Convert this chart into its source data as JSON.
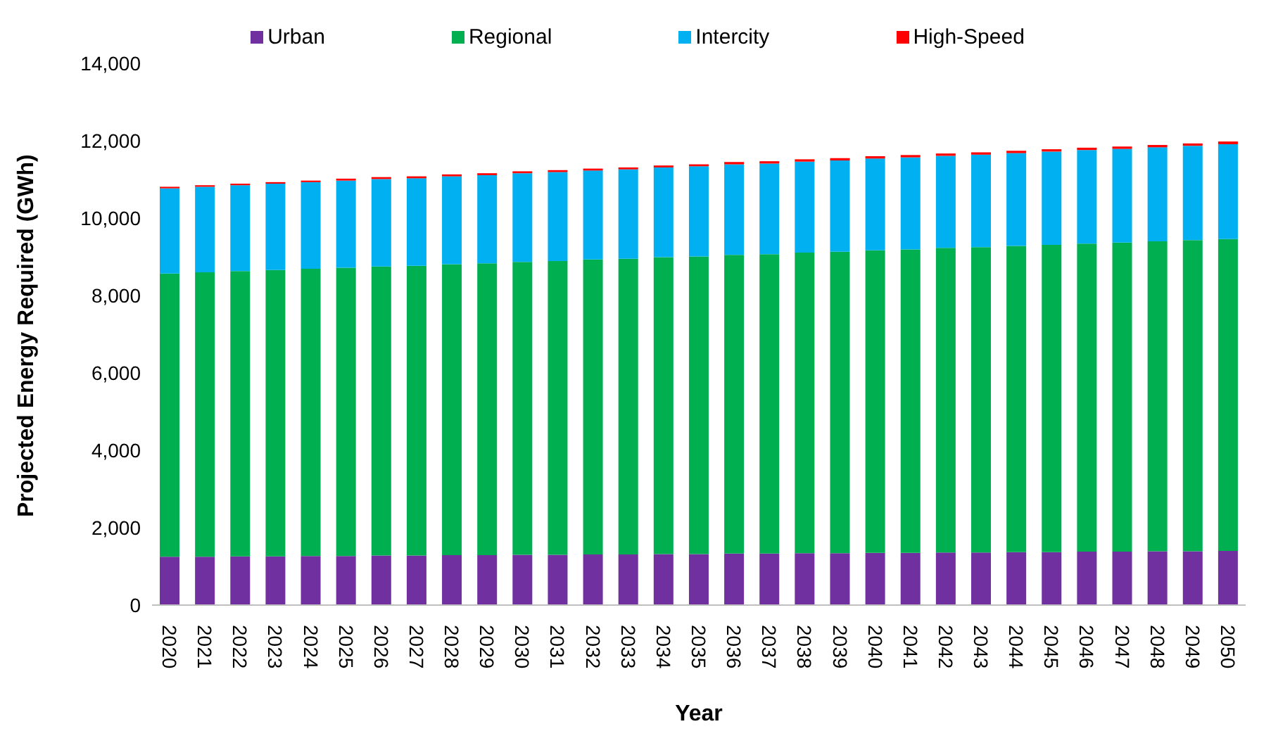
{
  "chart_data": {
    "type": "bar",
    "stacked": true,
    "xlabel": "Year",
    "ylabel": "Projected Energy Required (GWh)",
    "categories": [
      "2020",
      "2021",
      "2022",
      "2023",
      "2024",
      "2025",
      "2026",
      "2027",
      "2028",
      "2029",
      "2030",
      "2031",
      "2032",
      "2033",
      "2034",
      "2035",
      "2036",
      "2037",
      "2038",
      "2039",
      "2040",
      "2041",
      "2042",
      "2043",
      "2044",
      "2045",
      "2046",
      "2047",
      "2048",
      "2049",
      "2050"
    ],
    "series": [
      {
        "name": "Urban",
        "color": "#7030a0",
        "values": [
          1250,
          1250,
          1260,
          1260,
          1270,
          1270,
          1280,
          1280,
          1290,
          1290,
          1300,
          1300,
          1310,
          1310,
          1320,
          1320,
          1330,
          1330,
          1340,
          1340,
          1350,
          1350,
          1360,
          1360,
          1370,
          1370,
          1380,
          1380,
          1390,
          1390,
          1400
        ]
      },
      {
        "name": "Regional",
        "color": "#00b050",
        "values": [
          7320,
          7350,
          7370,
          7400,
          7420,
          7450,
          7470,
          7490,
          7520,
          7540,
          7570,
          7590,
          7620,
          7640,
          7670,
          7690,
          7720,
          7740,
          7770,
          7790,
          7820,
          7840,
          7870,
          7890,
          7910,
          7940,
          7960,
          7990,
          8010,
          8040,
          8060
        ]
      },
      {
        "name": "Intercity",
        "color": "#00b0f0",
        "values": [
          2200,
          2210,
          2220,
          2230,
          2240,
          2250,
          2260,
          2260,
          2270,
          2280,
          2290,
          2300,
          2300,
          2310,
          2320,
          2330,
          2340,
          2340,
          2350,
          2360,
          2370,
          2380,
          2380,
          2390,
          2400,
          2410,
          2420,
          2420,
          2430,
          2440,
          2450
        ]
      },
      {
        "name": "High-Speed",
        "color": "#ff0000",
        "values": [
          40,
          40,
          40,
          40,
          40,
          50,
          50,
          50,
          50,
          50,
          50,
          50,
          50,
          50,
          50,
          50,
          60,
          60,
          60,
          60,
          60,
          60,
          60,
          60,
          60,
          60,
          60,
          60,
          60,
          60,
          70
        ]
      }
    ],
    "ylim": [
      0,
      14000
    ],
    "yticks": [
      0,
      {
        "value": 2000,
        "label": "2,000"
      },
      {
        "value": 4000,
        "label": "4,000"
      },
      {
        "value": 6000,
        "label": "6,000"
      },
      {
        "value": 8000,
        "label": "8,000"
      },
      {
        "value": 10000,
        "label": "10,000"
      },
      {
        "value": 12000,
        "label": "12,000"
      },
      {
        "value": 14000,
        "label": "14,000"
      }
    ],
    "grid": false,
    "legend": "top"
  }
}
